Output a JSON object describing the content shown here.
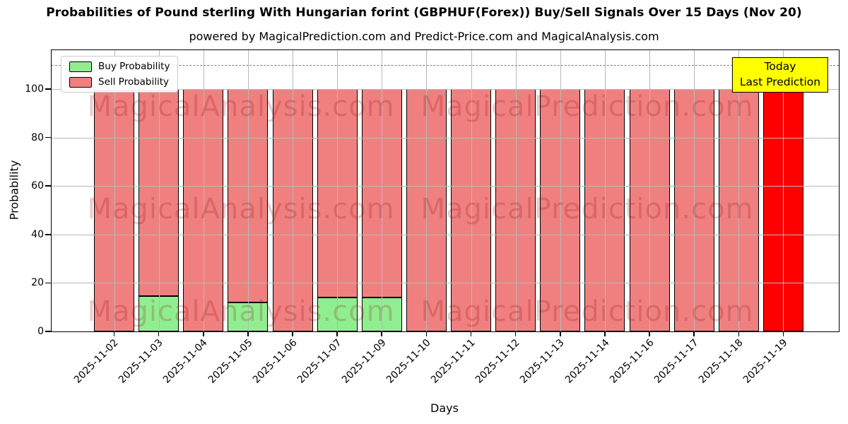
{
  "header": {
    "title": "Probabilities of Pound sterling With Hungarian forint (GBPHUF(Forex)) Buy/Sell Signals Over 15 Days (Nov 20)",
    "subtitle": "powered by MagicalPrediction.com and Predict-Price.com and MagicalAnalysis.com"
  },
  "chart_data": {
    "type": "bar",
    "stacked": true,
    "title": "Probabilities of Pound sterling With Hungarian forint (GBPHUF(Forex)) Buy/Sell Signals Over 15 Days (Nov 20)",
    "categories": [
      "2025-11-02",
      "2025-11-03",
      "2025-11-04",
      "2025-11-05",
      "2025-11-06",
      "2025-11-07",
      "2025-11-09",
      "2025-11-10",
      "2025-11-11",
      "2025-11-12",
      "2025-11-13",
      "2025-11-14",
      "2025-11-16",
      "2025-11-17",
      "2025-11-18",
      "2025-11-19"
    ],
    "series": [
      {
        "name": "Buy Probability",
        "color": "#90EE90",
        "values": [
          0,
          14.5,
          0,
          12,
          0,
          14,
          14,
          0,
          0,
          0,
          0,
          0,
          0,
          0,
          0,
          0
        ]
      },
      {
        "name": "Sell Probability",
        "color": "#F08080",
        "values": [
          100,
          85.5,
          100,
          88,
          100,
          86,
          86,
          100,
          100,
          100,
          100,
          100,
          100,
          100,
          100,
          100
        ]
      }
    ],
    "last_bar_index": 15,
    "last_bar_color": "#FF0000",
    "xlabel": "Days",
    "ylabel": "Probability",
    "ylim": [
      0,
      116
    ],
    "yticks": [
      0,
      20,
      40,
      60,
      80,
      100
    ],
    "grid": true,
    "dashed_line_y": 110,
    "legend_position": "upper left",
    "annotation": {
      "lines": [
        "Today",
        "Last Prediction"
      ],
      "bg": "#FFFF00"
    },
    "watermarks": [
      "MagicalAnalysis.com",
      "MagicalPrediction.com"
    ]
  }
}
